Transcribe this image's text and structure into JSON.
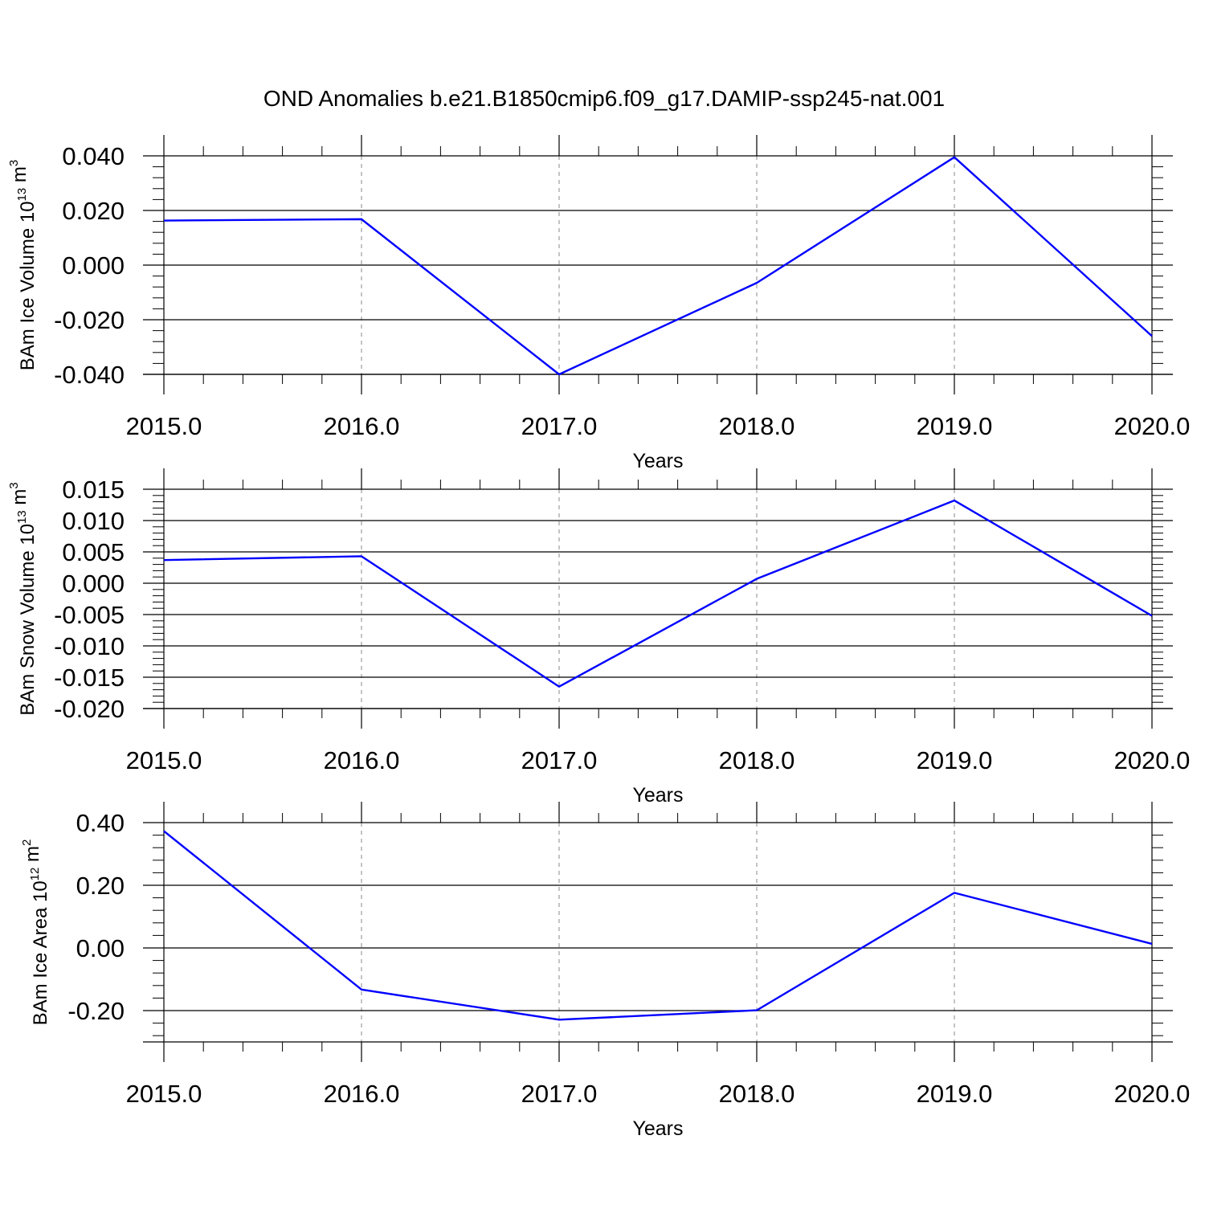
{
  "title": "OND Anomalies b.e21.B1850cmip6.f09_g17.DAMIP-ssp245-nat.001",
  "colors": {
    "line": "#0000ff",
    "axes": "#000000",
    "grid": "#888888",
    "background": "#ffffff"
  },
  "chart_data": [
    {
      "type": "line",
      "ylabel": {
        "prefix": "BAm Ice Volume 10",
        "exponent": "13",
        "unit": " m",
        "unit_exponent": "3"
      },
      "xlabel": "Years",
      "xlim": [
        2015.0,
        2020.0
      ],
      "ylim": [
        -0.04,
        0.04
      ],
      "xticks": [
        2015.0,
        2016.0,
        2017.0,
        2018.0,
        2019.0,
        2020.0
      ],
      "xtick_labels": [
        "2015.0",
        "2016.0",
        "2017.0",
        "2018.0",
        "2019.0",
        "2020.0"
      ],
      "yticks": [
        0.04,
        0.02,
        0.0,
        -0.02,
        -0.04
      ],
      "ytick_labels": [
        "0.040",
        "0.020",
        "0.000",
        "-0.020",
        "-0.040"
      ],
      "grid": "vertical dashed at major x ticks",
      "series": [
        {
          "x": [
            2015,
            2016,
            2017,
            2018,
            2019,
            2020
          ],
          "values": [
            0.0163,
            0.0168,
            -0.04,
            -0.0065,
            0.0395,
            -0.026
          ]
        }
      ]
    },
    {
      "type": "line",
      "ylabel": {
        "prefix": "BAm Snow Volume 10",
        "exponent": "13",
        "unit": " m",
        "unit_exponent": "3"
      },
      "xlabel": "Years",
      "xlim": [
        2015.0,
        2020.0
      ],
      "ylim": [
        -0.02,
        0.015
      ],
      "xticks": [
        2015.0,
        2016.0,
        2017.0,
        2018.0,
        2019.0,
        2020.0
      ],
      "xtick_labels": [
        "2015.0",
        "2016.0",
        "2017.0",
        "2018.0",
        "2019.0",
        "2020.0"
      ],
      "yticks": [
        0.015,
        0.01,
        0.005,
        0.0,
        -0.005,
        -0.01,
        -0.015,
        -0.02
      ],
      "ytick_labels": [
        "0.015",
        "0.010",
        "0.005",
        "0.000",
        "-0.005",
        "-0.010",
        "-0.015",
        "-0.020"
      ],
      "grid": "vertical dashed at major x ticks",
      "series": [
        {
          "x": [
            2015,
            2016,
            2017,
            2018,
            2019,
            2020
          ],
          "values": [
            0.0037,
            0.0043,
            -0.0165,
            0.0007,
            0.0132,
            -0.0052
          ]
        }
      ]
    },
    {
      "type": "line",
      "ylabel": {
        "prefix": "BAm Ice Area 10",
        "exponent": "12",
        "unit": " m",
        "unit_exponent": "2"
      },
      "xlabel": "Years",
      "xlim": [
        2015.0,
        2020.0
      ],
      "ylim": [
        -0.3,
        0.4
      ],
      "xticks": [
        2015.0,
        2016.0,
        2017.0,
        2018.0,
        2019.0,
        2020.0
      ],
      "xtick_labels": [
        "2015.0",
        "2016.0",
        "2017.0",
        "2018.0",
        "2019.0",
        "2020.0"
      ],
      "yticks": [
        0.4,
        0.2,
        0.0,
        -0.2
      ],
      "ytick_labels": [
        "0.40",
        "0.20",
        "0.00",
        "-0.20"
      ],
      "grid": "vertical dashed at major x ticks",
      "series": [
        {
          "x": [
            2015,
            2016,
            2017,
            2018,
            2019,
            2020
          ],
          "values": [
            0.373,
            -0.133,
            -0.229,
            -0.199,
            0.176,
            0.013
          ]
        }
      ]
    }
  ]
}
